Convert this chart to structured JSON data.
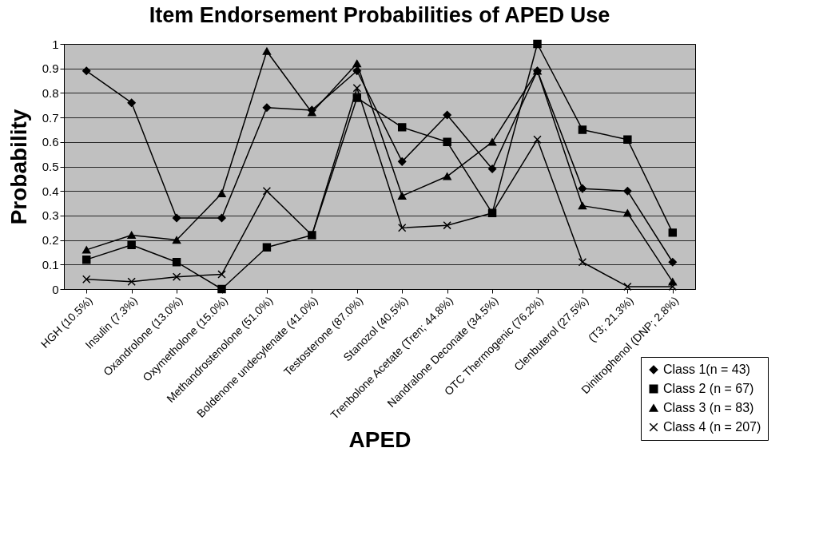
{
  "chart_data": {
    "type": "line",
    "title": "Item Endorsement Probabilities of APED Use",
    "xlabel": "APED",
    "ylabel": "Probability",
    "categories": [
      "HGH (10.5%)",
      "Insulin (7.3%)",
      "Oxandrolone (13.0%)",
      "Oxymetholone (15.0%)",
      "Methandrostenolone (51.0%)",
      "Boldenone undecylenate (41.0%)",
      "Testosterone (87.0%)",
      "Stanozol (40.5%)",
      "Trenbolone Acetate (Tren; 44.8%)",
      "Nandralone Deconate (34.5%)",
      "OTC Thermogenic (76.2%)",
      "Clenbuterol (27.5%)",
      "(T3; 21.3%)",
      "Dinitrophenol (DNP; 2.8%)"
    ],
    "series": [
      {
        "name": "Class 1(n = 43)",
        "color": "#000000",
        "marker": "diamond",
        "values": [
          0.89,
          0.76,
          0.29,
          0.29,
          0.74,
          0.73,
          0.89,
          0.52,
          0.71,
          0.49,
          0.89,
          0.41,
          0.4,
          0.11
        ]
      },
      {
        "name": "Class 2 (n = 67)",
        "color": "#000000",
        "marker": "square",
        "values": [
          0.12,
          0.18,
          0.11,
          0.0,
          0.17,
          0.22,
          0.78,
          0.66,
          0.6,
          0.31,
          1.0,
          0.65,
          0.61,
          0.23
        ]
      },
      {
        "name": "Class 3 (n = 83)",
        "color": "#000000",
        "marker": "triangle",
        "values": [
          0.16,
          0.22,
          0.2,
          0.39,
          0.97,
          0.72,
          0.92,
          0.38,
          0.46,
          0.6,
          0.89,
          0.34,
          0.31,
          0.03
        ]
      },
      {
        "name": "Class 4 (n = 207)",
        "color": "#000000",
        "marker": "cross",
        "values": [
          0.04,
          0.03,
          0.05,
          0.06,
          0.4,
          0.22,
          0.82,
          0.25,
          0.26,
          0.31,
          0.61,
          0.11,
          0.01,
          0.01
        ]
      }
    ],
    "ylim": [
      0,
      1
    ],
    "yticks": [
      0,
      0.1,
      0.2,
      0.3,
      0.4,
      0.5,
      0.6,
      0.7,
      0.8,
      0.9,
      1
    ],
    "grid": "y",
    "legend": "bottom right",
    "line_style": "solid"
  }
}
